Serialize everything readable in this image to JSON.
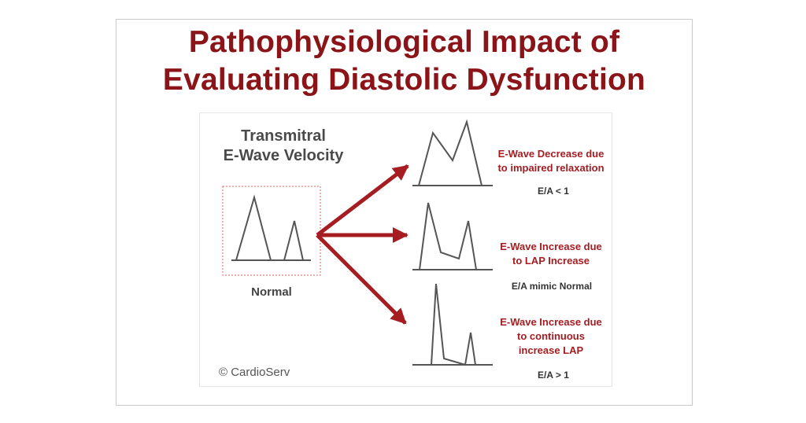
{
  "title": {
    "line1": "Pathophysiological Impact of",
    "line2": "Evaluating Diastolic Dysfunction"
  },
  "diagram": {
    "heading_line1": "Transmitral",
    "heading_line2": "E-Wave Velocity",
    "normal_label": "Normal",
    "copyright": "© CardioServ",
    "cases": [
      {
        "line1": "E-Wave Decrease due",
        "line2": "to impaired relaxation",
        "line3": "",
        "ratio": "E/A < 1"
      },
      {
        "line1": "E-Wave Increase due",
        "line2": "to LAP Increase",
        "line3": "",
        "ratio": "E/A mimic Normal"
      },
      {
        "line1": "E-Wave Increase due",
        "line2": "to continuous",
        "line3": "increase LAP",
        "ratio": "E/A > 1"
      }
    ]
  },
  "colors": {
    "title": "#8b1418",
    "arrow": "#a51d21",
    "waveform": "#555555",
    "dotted_border": "#e06060"
  }
}
